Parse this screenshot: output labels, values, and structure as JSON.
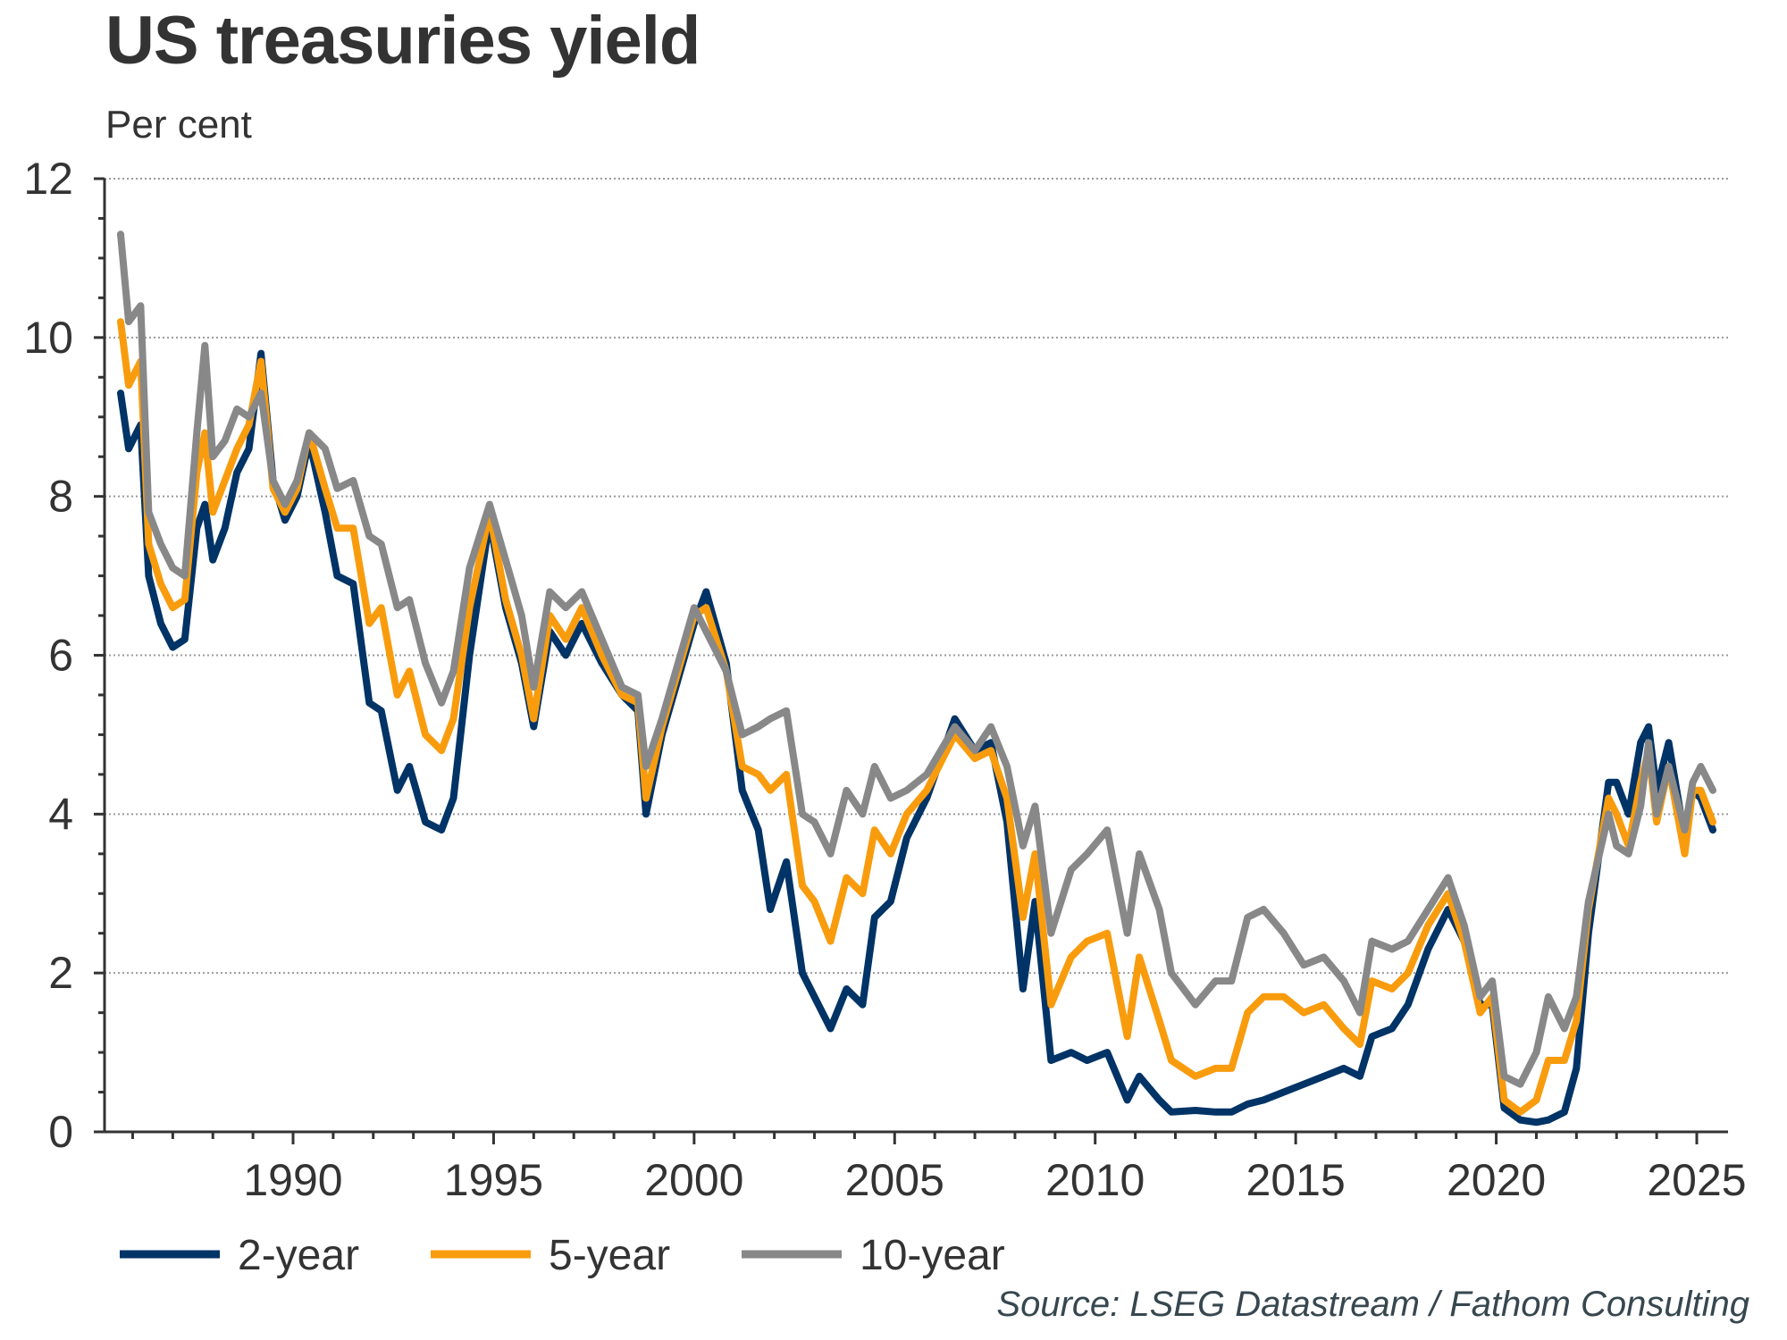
{
  "header": {
    "title": "US treasuries yield",
    "subtitle": "Per cent"
  },
  "source": "Source: LSEG Datastream / Fathom Consulting",
  "chart_data": {
    "type": "line",
    "title": "US treasuries yield",
    "subtitle": "Per cent",
    "xlabel": "",
    "ylabel": "Per cent",
    "xlim": [
      1985.7,
      2026.4
    ],
    "ylim": [
      0,
      12
    ],
    "yticks": [
      0,
      2,
      4,
      6,
      8,
      10,
      12
    ],
    "ytick_labels": [
      "0",
      "2",
      "4",
      "6",
      "8",
      "10",
      "12"
    ],
    "xticks": [
      1990,
      1995,
      2000,
      2005,
      2010,
      2015,
      2020,
      2025
    ],
    "xtick_labels": [
      "1990",
      "1995",
      "2000",
      "2005",
      "2010",
      "2015",
      "2020",
      "2025"
    ],
    "grid": "horizontal dotted",
    "legend_position": "bottom-left",
    "x": [
      1985.7,
      1985.9,
      1986.2,
      1986.4,
      1986.7,
      1987.0,
      1987.3,
      1987.6,
      1987.8,
      1988.0,
      1988.3,
      1988.6,
      1988.9,
      1989.2,
      1989.5,
      1989.8,
      1990.1,
      1990.4,
      1990.8,
      1991.1,
      1991.5,
      1991.9,
      1992.2,
      1992.6,
      1992.9,
      1993.3,
      1993.7,
      1994.0,
      1994.4,
      1994.9,
      1995.3,
      1995.7,
      1996.0,
      1996.4,
      1996.8,
      1997.2,
      1997.7,
      1998.2,
      1998.6,
      1998.8,
      1999.2,
      1999.6,
      2000.0,
      2000.3,
      2000.8,
      2001.2,
      2001.6,
      2001.9,
      2002.3,
      2002.7,
      2003.0,
      2003.4,
      2003.8,
      2004.2,
      2004.5,
      2004.9,
      2005.3,
      2005.8,
      2006.5,
      2007.0,
      2007.4,
      2007.8,
      2008.2,
      2008.5,
      2008.9,
      2009.4,
      2009.8,
      2010.3,
      2010.8,
      2011.1,
      2011.6,
      2011.9,
      2012.5,
      2013.0,
      2013.4,
      2013.8,
      2014.2,
      2014.7,
      2015.2,
      2015.7,
      2016.2,
      2016.6,
      2016.9,
      2017.4,
      2017.8,
      2018.3,
      2018.8,
      2019.2,
      2019.6,
      2019.9,
      2020.2,
      2020.6,
      2021.0,
      2021.3,
      2021.7,
      2022.0,
      2022.3,
      2022.8,
      2023.0,
      2023.3,
      2023.6,
      2023.8,
      2024.0,
      2024.3,
      2024.7,
      2024.9,
      2025.1,
      2025.4
    ],
    "series": [
      {
        "name": "2-year",
        "color": "#003366",
        "values": [
          9.3,
          8.6,
          8.9,
          7.0,
          6.4,
          6.1,
          6.2,
          7.6,
          7.9,
          7.2,
          7.6,
          8.3,
          8.6,
          9.8,
          8.2,
          7.7,
          8.0,
          8.7,
          7.8,
          7.0,
          6.9,
          5.4,
          5.3,
          4.3,
          4.6,
          3.9,
          3.8,
          4.2,
          6.0,
          7.7,
          6.6,
          5.9,
          5.1,
          6.3,
          6.0,
          6.4,
          5.9,
          5.5,
          5.3,
          4.0,
          5.0,
          5.7,
          6.4,
          6.8,
          5.9,
          4.3,
          3.8,
          2.8,
          3.4,
          2.0,
          1.7,
          1.3,
          1.8,
          1.6,
          2.7,
          2.9,
          3.7,
          4.2,
          5.2,
          4.8,
          4.9,
          3.9,
          1.8,
          2.9,
          0.9,
          1.0,
          0.9,
          1.0,
          0.4,
          0.7,
          0.4,
          0.25,
          0.27,
          0.25,
          0.25,
          0.35,
          0.4,
          0.5,
          0.6,
          0.7,
          0.8,
          0.7,
          1.2,
          1.3,
          1.6,
          2.3,
          2.8,
          2.4,
          1.6,
          1.6,
          0.3,
          0.15,
          0.12,
          0.15,
          0.25,
          0.8,
          2.5,
          4.4,
          4.4,
          4.0,
          4.9,
          5.1,
          4.3,
          4.9,
          3.7,
          4.3,
          4.2,
          3.8
        ]
      },
      {
        "name": "5-year",
        "color": "#F89C0E",
        "values": [
          10.2,
          9.4,
          9.7,
          7.4,
          6.9,
          6.6,
          6.7,
          8.3,
          8.8,
          7.8,
          8.2,
          8.6,
          8.9,
          9.7,
          8.1,
          7.8,
          8.1,
          8.8,
          8.1,
          7.6,
          7.6,
          6.4,
          6.6,
          5.5,
          5.8,
          5.0,
          4.8,
          5.2,
          6.6,
          7.8,
          6.7,
          6.0,
          5.2,
          6.5,
          6.2,
          6.6,
          6.0,
          5.5,
          5.4,
          4.2,
          5.1,
          5.8,
          6.5,
          6.6,
          5.8,
          4.6,
          4.5,
          4.3,
          4.5,
          3.1,
          2.9,
          2.4,
          3.2,
          3.0,
          3.8,
          3.5,
          4.0,
          4.3,
          5.0,
          4.7,
          4.8,
          4.2,
          2.7,
          3.5,
          1.6,
          2.2,
          2.4,
          2.5,
          1.2,
          2.2,
          1.4,
          0.9,
          0.7,
          0.8,
          0.8,
          1.5,
          1.7,
          1.7,
          1.5,
          1.6,
          1.3,
          1.1,
          1.9,
          1.8,
          2.0,
          2.6,
          3.0,
          2.4,
          1.5,
          1.7,
          0.4,
          0.25,
          0.4,
          0.9,
          0.9,
          1.4,
          2.8,
          4.2,
          4.0,
          3.6,
          4.4,
          4.8,
          3.9,
          4.6,
          3.5,
          4.3,
          4.3,
          3.9
        ]
      },
      {
        "name": "10-year",
        "color": "#888888",
        "values": [
          11.3,
          10.2,
          10.4,
          7.8,
          7.4,
          7.1,
          7.0,
          8.8,
          9.9,
          8.5,
          8.7,
          9.1,
          9.0,
          9.3,
          8.2,
          7.9,
          8.2,
          8.8,
          8.6,
          8.1,
          8.2,
          7.5,
          7.4,
          6.6,
          6.7,
          5.9,
          5.4,
          5.8,
          7.1,
          7.9,
          7.2,
          6.5,
          5.6,
          6.8,
          6.6,
          6.8,
          6.2,
          5.6,
          5.5,
          4.6,
          5.2,
          5.9,
          6.6,
          6.3,
          5.8,
          5.0,
          5.1,
          5.2,
          5.3,
          4.0,
          3.9,
          3.5,
          4.3,
          4.0,
          4.6,
          4.2,
          4.3,
          4.5,
          5.1,
          4.8,
          5.1,
          4.6,
          3.6,
          4.1,
          2.5,
          3.3,
          3.5,
          3.8,
          2.5,
          3.5,
          2.8,
          2.0,
          1.6,
          1.9,
          1.9,
          2.7,
          2.8,
          2.5,
          2.1,
          2.2,
          1.9,
          1.5,
          2.4,
          2.3,
          2.4,
          2.8,
          3.2,
          2.6,
          1.7,
          1.9,
          0.7,
          0.6,
          1.0,
          1.7,
          1.3,
          1.7,
          2.9,
          4.0,
          3.6,
          3.5,
          4.1,
          4.9,
          4.0,
          4.6,
          3.8,
          4.4,
          4.6,
          4.3
        ]
      }
    ]
  },
  "legend": [
    {
      "label": "2-year",
      "color": "#003366"
    },
    {
      "label": "5-year",
      "color": "#F89C0E"
    },
    {
      "label": "10-year",
      "color": "#888888"
    }
  ]
}
